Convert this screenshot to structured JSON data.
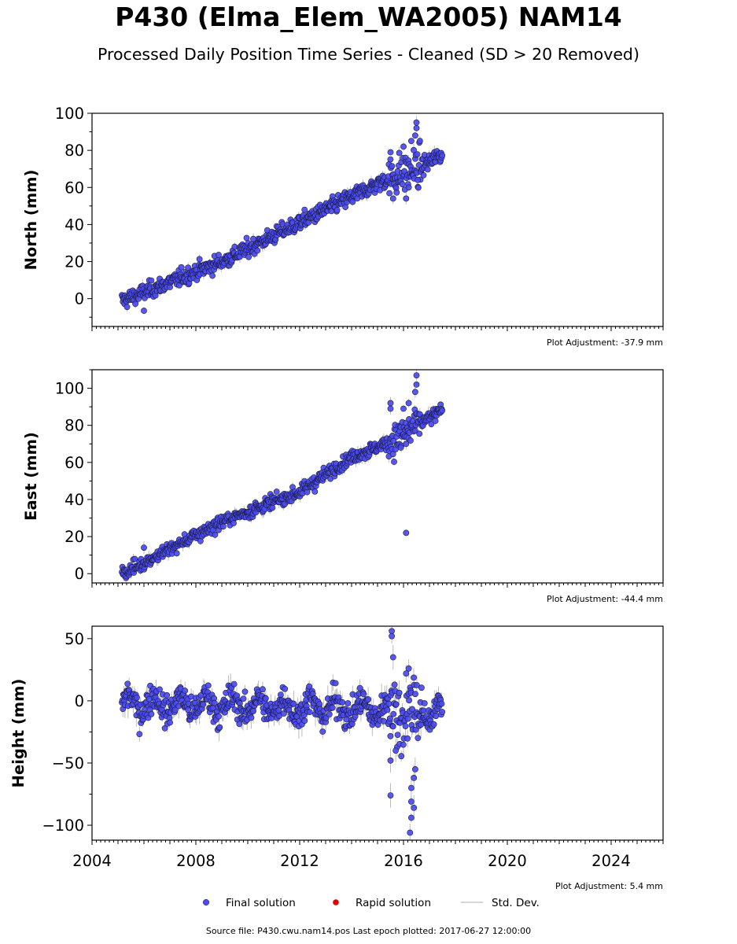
{
  "title": "P430 (Elma_Elem_WA2005) NAM14",
  "subtitle": "Processed Daily Position Time Series - Cleaned (SD > 20 Removed)",
  "footer": "Source file: P430.cwu.nam14.pos  Last epoch plotted: 2017-06-27 12:00:00",
  "colors": {
    "final": "#4B4BF0",
    "rapid": "#E00000",
    "edge": "#1a1a40",
    "stddev": "#b4b4b4"
  },
  "legend": [
    {
      "label": "Final solution",
      "marker": "dot",
      "color": "#4B4BF0"
    },
    {
      "label": "Rapid solution",
      "marker": "dot",
      "color": "#E00000"
    },
    {
      "label": "Std. Dev.",
      "marker": "line",
      "color": "#c8c8c8"
    }
  ],
  "chart_data": [
    {
      "type": "scatter",
      "ylabel": "North (mm)",
      "adjustment": "Plot Adjustment: -37.9 mm",
      "xlim": [
        2004,
        2026
      ],
      "ylim": [
        -15,
        100
      ],
      "yticks": [
        0,
        20,
        40,
        60,
        80,
        100
      ],
      "trend": [
        [
          2005.2,
          -1
        ],
        [
          2009,
          20
        ],
        [
          2012,
          41
        ],
        [
          2014,
          55
        ],
        [
          2015,
          62
        ],
        [
          2015.6,
          66
        ],
        [
          2016.5,
          70
        ],
        [
          2017.5,
          78
        ]
      ],
      "noise": 2.2,
      "err": 2.0,
      "outliers": [
        [
          2006.0,
          -6.5
        ],
        [
          2015.5,
          79
        ],
        [
          2015.6,
          54
        ],
        [
          2016.1,
          54
        ],
        [
          2016.5,
          95
        ],
        [
          2016.5,
          92
        ],
        [
          2016.45,
          88
        ],
        [
          2016.3,
          85
        ],
        [
          2016.0,
          82
        ],
        [
          2016.55,
          64
        ],
        [
          2016.2,
          60
        ]
      ]
    },
    {
      "type": "scatter",
      "ylabel": "East (mm)",
      "adjustment": "Plot Adjustment: -44.4 mm",
      "xlim": [
        2004,
        2026
      ],
      "ylim": [
        -5,
        110
      ],
      "yticks": [
        0,
        20,
        40,
        60,
        80,
        100
      ],
      "trend": [
        [
          2005.2,
          0
        ],
        [
          2009,
          28
        ],
        [
          2012,
          44
        ],
        [
          2014,
          63
        ],
        [
          2015.5,
          71
        ],
        [
          2016.5,
          80
        ],
        [
          2017.5,
          88
        ]
      ],
      "noise": 1.8,
      "err": 2.0,
      "outliers": [
        [
          2006.0,
          14
        ],
        [
          2015.5,
          92
        ],
        [
          2015.5,
          89
        ],
        [
          2016.1,
          22
        ],
        [
          2016.5,
          107
        ],
        [
          2016.5,
          102
        ],
        [
          2016.45,
          98
        ],
        [
          2016.2,
          92
        ],
        [
          2016.0,
          89
        ],
        [
          2015.9,
          68
        ],
        [
          2016.1,
          70
        ]
      ]
    },
    {
      "type": "scatter",
      "ylabel": "Height (mm)",
      "adjustment": "Plot Adjustment: 5.4 mm",
      "xlim": [
        2004,
        2026
      ],
      "ylim": [
        -112,
        60
      ],
      "yticks": [
        -100,
        -50,
        0,
        50
      ],
      "xticks": [
        2004,
        2008,
        2012,
        2016,
        2020,
        2024
      ],
      "trend": [
        [
          2005.2,
          -2
        ],
        [
          2010,
          -4
        ],
        [
          2015,
          -7
        ],
        [
          2017.5,
          -10
        ]
      ],
      "seasonal": 7,
      "noise": 6,
      "err": 6.0,
      "outliers": [
        [
          2015.55,
          56
        ],
        [
          2015.55,
          52
        ],
        [
          2015.6,
          35
        ],
        [
          2015.5,
          -48
        ],
        [
          2015.5,
          -76
        ],
        [
          2016.25,
          -106
        ],
        [
          2016.3,
          -94
        ],
        [
          2016.3,
          -81
        ],
        [
          2016.4,
          -86
        ],
        [
          2016.3,
          -70
        ],
        [
          2016.45,
          -55
        ],
        [
          2016.2,
          26
        ],
        [
          2016.1,
          22
        ],
        [
          2016.4,
          -62
        ],
        [
          2015.7,
          -40
        ]
      ]
    }
  ],
  "x_span": [
    2005.15,
    2017.49
  ]
}
